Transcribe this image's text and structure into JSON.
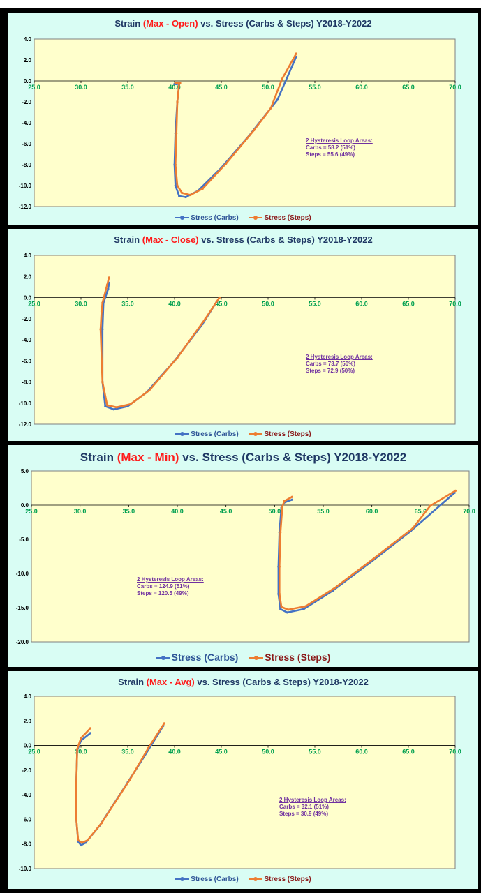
{
  "colors": {
    "carbs": "#4472c4",
    "steps": "#ed7d31",
    "plot_bg": "#ffffcc",
    "panel_bg": "#d9fdf4",
    "title": "#1f3864",
    "highlight": "#ff1a1a",
    "annotation": "#7030a0",
    "x_tick": "#00a050"
  },
  "chart_data": [
    {
      "type": "line",
      "title_prefix": "Strain ",
      "title_highlight": "(Max - Open)",
      "title_suffix": " vs. Stress (Carbs & Steps)  Y2018-Y2022",
      "xlim": [
        25,
        70
      ],
      "ylim": [
        -12,
        4
      ],
      "x_ticks": [
        "25.0",
        "30.0",
        "35.0",
        "40.0",
        "45.0",
        "50.0",
        "55.0",
        "60.0",
        "65.0",
        "70.0"
      ],
      "y_ticks": [
        "4.0",
        "2.0",
        "0.0",
        "-2.0",
        "-4.0",
        "-6.0",
        "-8.0",
        "-10.0",
        "-12.0"
      ],
      "legend": [
        "Stress (Carbs)",
        "Stress (Steps)"
      ],
      "annotation": {
        "heading": "2 Hysteresis Loop Areas:",
        "line1": "Carbs = 58.2 (51%)",
        "line2": "Steps = 55.6 (49%)"
      },
      "series": [
        {
          "name": "Stress (Carbs)",
          "x": [
            40.0,
            40.2,
            40.5,
            40.3,
            40.1,
            40.0,
            40.1,
            40.5,
            41.2,
            42.5,
            45,
            48,
            51,
            53.0
          ],
          "y": [
            -0.3,
            -0.3,
            -0.3,
            -2,
            -5,
            -8,
            -10,
            -11,
            -11.1,
            -10.5,
            -8.3,
            -5.2,
            -1.8,
            2.3
          ]
        },
        {
          "name": "Stress (Steps)",
          "x": [
            40.1,
            40.6,
            40.5,
            40.3,
            40.2,
            40.1,
            40.3,
            40.8,
            41.7,
            43,
            45.5,
            48.5,
            50.3,
            51.5,
            53.0
          ],
          "y": [
            -0.2,
            -0.2,
            -0.2,
            -2,
            -5,
            -8,
            -10,
            -10.7,
            -10.9,
            -10.3,
            -7.9,
            -4.7,
            -2.6,
            0.2,
            2.6
          ]
        }
      ]
    },
    {
      "type": "line",
      "title_prefix": "Strain ",
      "title_highlight": "(Max - Close)",
      "title_suffix": " vs. Stress (Carbs & Steps)  Y2018-Y2022",
      "xlim": [
        25,
        70
      ],
      "ylim": [
        -12,
        4
      ],
      "x_ticks": [
        "25.0",
        "30.0",
        "35.0",
        "40.0",
        "45.0",
        "50.0",
        "55.0",
        "60.0",
        "65.0",
        "70.0"
      ],
      "y_ticks": [
        "4.0",
        "2.0",
        "0.0",
        "-2.0",
        "-4.0",
        "-6.0",
        "-8.0",
        "-10.0",
        "-12.0"
      ],
      "legend": [
        "Stress (Carbs)",
        "Stress (Steps)"
      ],
      "annotation": {
        "heading": "2 Hysteresis Loop Areas:",
        "line1": "Carbs = 73.7 (50%)",
        "line2": "Steps = 72.9 (50%)"
      },
      "series": [
        {
          "name": "Stress (Carbs)",
          "x": [
            44.5,
            43,
            40,
            37,
            35,
            33.5,
            32.6,
            32.3,
            32.3,
            32.4,
            32.9,
            33.0
          ],
          "y": [
            -0.4,
            -2.5,
            -6,
            -9,
            -10.3,
            -10.6,
            -10.3,
            -8,
            -3,
            -0.5,
            0.8,
            1.4
          ]
        },
        {
          "name": "Stress (Steps)",
          "x": [
            44.8,
            43.3,
            40.3,
            37.3,
            35.3,
            33.8,
            32.8,
            32.3,
            32.1,
            32.2,
            32.3,
            32.8,
            33.0
          ],
          "y": [
            0,
            -2,
            -5.7,
            -8.8,
            -10.1,
            -10.4,
            -10.2,
            -8,
            -3,
            -1.3,
            -0.5,
            1.2,
            1.9
          ]
        }
      ]
    },
    {
      "type": "line",
      "title_prefix": "Strain ",
      "title_highlight": "(Max - Min)",
      "title_suffix": " vs. Stress (Carbs & Steps)  Y2018-Y2022",
      "xlim": [
        25,
        70
      ],
      "ylim": [
        -20,
        5
      ],
      "x_ticks": [
        "25.0",
        "30.0",
        "35.0",
        "40.0",
        "45.0",
        "50.0",
        "55.0",
        "60.0",
        "65.0",
        "70.0"
      ],
      "y_ticks": [
        "5.0",
        "0.0",
        "-5.0",
        "-10.0",
        "-15.0",
        "-20.0"
      ],
      "legend": [
        "Stress (Carbs)",
        "Stress (Steps)"
      ],
      "annotation": {
        "heading": "2 Hysteresis Loop Areas:",
        "line1": "Carbs = 124.9 (51%)",
        "line2": "Steps = 120.5 (49%)"
      },
      "series": [
        {
          "name": "Stress (Carbs)",
          "x": [
            51.8,
            51,
            50.7,
            50.5,
            50.4,
            50.4,
            50.6,
            51.3,
            53,
            56,
            60,
            64,
            68.5
          ],
          "y": [
            0.8,
            0.4,
            -0.4,
            -4,
            -9,
            -13,
            -15.2,
            -15.7,
            -15.2,
            -12.5,
            -8.2,
            -3.8,
            1.8
          ]
        },
        {
          "name": "Stress (Steps)",
          "x": [
            51.8,
            51,
            50.8,
            50.6,
            50.5,
            50.5,
            50.7,
            51.4,
            53.2,
            56.2,
            60.2,
            64.2,
            66,
            68.6
          ],
          "y": [
            1.2,
            0.6,
            -0.2,
            -4,
            -9,
            -13,
            -14.9,
            -15.3,
            -14.8,
            -12.1,
            -7.8,
            -3.4,
            -0.1,
            2.1
          ]
        }
      ]
    },
    {
      "type": "line",
      "title_prefix": "Strain ",
      "title_highlight": "(Max - Avg)",
      "title_suffix": " vs. Stress (Carbs & Steps)  Y2018-Y2022",
      "xlim": [
        25,
        70
      ],
      "ylim": [
        -10,
        4
      ],
      "x_ticks": [
        "25.0",
        "30.0",
        "35.0",
        "40.0",
        "45.0",
        "50.0",
        "55.0",
        "60.0",
        "65.0",
        "70.0"
      ],
      "y_ticks": [
        "4.0",
        "2.0",
        "0.0",
        "-2.0",
        "-4.0",
        "-6.0",
        "-8.0",
        "-10.0"
      ],
      "legend": [
        "Stress (Carbs)",
        "Stress (Steps)"
      ],
      "annotation": {
        "heading": "2 Hysteresis Loop Areas:",
        "line1": "Carbs = 32.1 (51%)",
        "line2": "Steps = 30.9 (49%)"
      },
      "series": [
        {
          "name": "Stress (Carbs)",
          "x": [
            31.0,
            30.0,
            29.6,
            29.5,
            29.5,
            29.7,
            30.0,
            30.5,
            32,
            35,
            37,
            38.8
          ],
          "y": [
            1.0,
            0.4,
            -0.4,
            -3,
            -6,
            -7.8,
            -8.1,
            -7.9,
            -6.5,
            -3,
            -0.6,
            1.6
          ]
        },
        {
          "name": "Stress (Steps)",
          "x": [
            31.0,
            30.0,
            29.6,
            29.5,
            29.5,
            29.7,
            30.1,
            30.7,
            32.2,
            35.2,
            37.2,
            38.9
          ],
          "y": [
            1.4,
            0.6,
            -0.3,
            -3,
            -6,
            -7.7,
            -7.9,
            -7.7,
            -6.3,
            -2.8,
            -0.2,
            1.8
          ]
        }
      ]
    }
  ]
}
